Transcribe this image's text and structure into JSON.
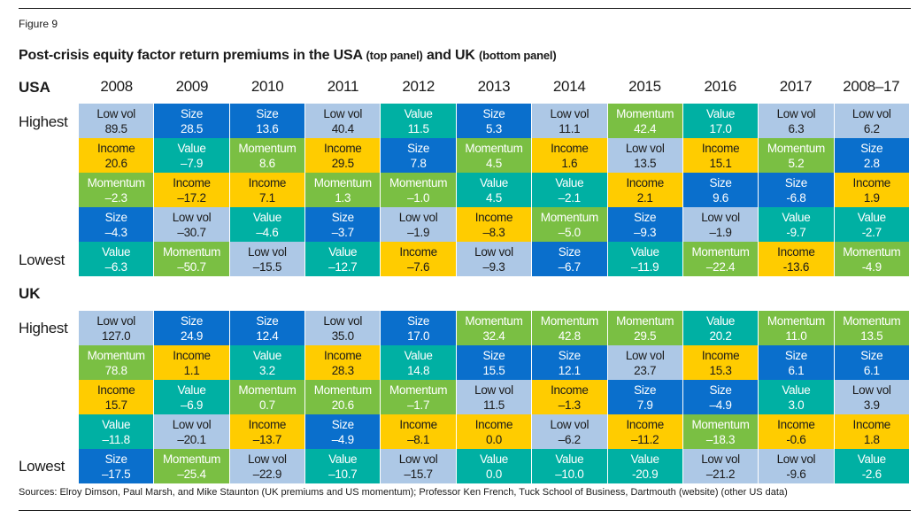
{
  "figure_label": "Figure 9",
  "title": {
    "main1": "Post-crisis equity factor return premiums in the USA ",
    "small1": "(top panel)",
    "main2": " and UK ",
    "small2": "(bottom panel)"
  },
  "rank_labels": {
    "highest": "Highest",
    "lowest": "Lowest"
  },
  "sources": "Sources: Elroy Dimson, Paul Marsh, and Mike Staunton (UK premiums and US momentum); Professor Ken French, Tuck School of Business, Dartmouth (website) (other US data)",
  "factor_colors": {
    "Low vol": "#adc8e6",
    "Size": "#0a6fcc",
    "Value": "#00b0a3",
    "Momentum": "#7abf43",
    "Income": "#ffcc00"
  },
  "chart_data": {
    "type": "table",
    "title": "Post-crisis equity factor return premiums in the USA (top panel) and UK (bottom panel)",
    "columns": [
      "2008",
      "2009",
      "2010",
      "2011",
      "2012",
      "2013",
      "2014",
      "2015",
      "2016",
      "2017",
      "2008–17"
    ],
    "row_order": "Highest to Lowest",
    "panels": [
      {
        "name": "USA",
        "columns": [
          [
            [
              "Low vol",
              "89.5"
            ],
            [
              "Income",
              "20.6"
            ],
            [
              "Momentum",
              "–2.3"
            ],
            [
              "Size",
              "–4.3"
            ],
            [
              "Value",
              "–6.3"
            ]
          ],
          [
            [
              "Size",
              "28.5"
            ],
            [
              "Value",
              "–7.9"
            ],
            [
              "Income",
              "–17.2"
            ],
            [
              "Low vol",
              "–30.7"
            ],
            [
              "Momentum",
              "–50.7"
            ]
          ],
          [
            [
              "Size",
              "13.6"
            ],
            [
              "Momentum",
              "8.6"
            ],
            [
              "Income",
              "7.1"
            ],
            [
              "Value",
              "–4.6"
            ],
            [
              "Low vol",
              "–15.5"
            ]
          ],
          [
            [
              "Low vol",
              "40.4"
            ],
            [
              "Income",
              "29.5"
            ],
            [
              "Momentum",
              "1.3"
            ],
            [
              "Size",
              "–3.7"
            ],
            [
              "Value",
              "–12.7"
            ]
          ],
          [
            [
              "Value",
              "11.5"
            ],
            [
              "Size",
              "7.8"
            ],
            [
              "Momentum",
              "–1.0"
            ],
            [
              "Low vol",
              "–1.9"
            ],
            [
              "Income",
              "–7.6"
            ]
          ],
          [
            [
              "Size",
              "5.3"
            ],
            [
              "Momentum",
              "4.5"
            ],
            [
              "Value",
              "4.5"
            ],
            [
              "Income",
              "–8.3"
            ],
            [
              "Low vol",
              "–9.3"
            ]
          ],
          [
            [
              "Low vol",
              "11.1"
            ],
            [
              "Income",
              "1.6"
            ],
            [
              "Value",
              "–2.1"
            ],
            [
              "Momentum",
              "–5.0"
            ],
            [
              "Size",
              "–6.7"
            ]
          ],
          [
            [
              "Momentum",
              "42.4"
            ],
            [
              "Low vol",
              "13.5"
            ],
            [
              "Income",
              "2.1"
            ],
            [
              "Size",
              "–9.3"
            ],
            [
              "Value",
              "–11.9"
            ]
          ],
          [
            [
              "Value",
              "17.0"
            ],
            [
              "Income",
              "15.1"
            ],
            [
              "Size",
              "9.6"
            ],
            [
              "Low vol",
              "–1.9"
            ],
            [
              "Momentum",
              "–22.4"
            ]
          ],
          [
            [
              "Low vol",
              "6.3"
            ],
            [
              "Momentum",
              "5.2"
            ],
            [
              "Size",
              "-6.8"
            ],
            [
              "Value",
              "-9.7"
            ],
            [
              "Income",
              "-13.6"
            ]
          ],
          [
            [
              "Low vol",
              "6.2"
            ],
            [
              "Size",
              "2.8"
            ],
            [
              "Income",
              "1.9"
            ],
            [
              "Value",
              "-2.7"
            ],
            [
              "Momentum",
              "-4.9"
            ]
          ]
        ]
      },
      {
        "name": "UK",
        "columns": [
          [
            [
              "Low vol",
              "127.0"
            ],
            [
              "Momentum",
              "78.8"
            ],
            [
              "Income",
              "15.7"
            ],
            [
              "Value",
              "–11.8"
            ],
            [
              "Size",
              "–17.5"
            ]
          ],
          [
            [
              "Size",
              "24.9"
            ],
            [
              "Income",
              "1.1"
            ],
            [
              "Value",
              "–6.9"
            ],
            [
              "Low vol",
              "–20.1"
            ],
            [
              "Momentum",
              "–25.4"
            ]
          ],
          [
            [
              "Size",
              "12.4"
            ],
            [
              "Value",
              "3.2"
            ],
            [
              "Momentum",
              "0.7"
            ],
            [
              "Income",
              "–13.7"
            ],
            [
              "Low vol",
              "–22.9"
            ]
          ],
          [
            [
              "Low vol",
              "35.0"
            ],
            [
              "Income",
              "28.3"
            ],
            [
              "Momentum",
              "20.6"
            ],
            [
              "Size",
              "–4.9"
            ],
            [
              "Value",
              "–10.7"
            ]
          ],
          [
            [
              "Size",
              "17.0"
            ],
            [
              "Value",
              "14.8"
            ],
            [
              "Momentum",
              "–1.7"
            ],
            [
              "Income",
              "–8.1"
            ],
            [
              "Low vol",
              "–15.7"
            ]
          ],
          [
            [
              "Momentum",
              "32.4"
            ],
            [
              "Size",
              "15.5"
            ],
            [
              "Low vol",
              "11.5"
            ],
            [
              "Income",
              "0.0"
            ],
            [
              "Value",
              "0.0"
            ]
          ],
          [
            [
              "Momentum",
              "42.8"
            ],
            [
              "Size",
              "12.1"
            ],
            [
              "Income",
              "–1.3"
            ],
            [
              "Low vol",
              "–6.2"
            ],
            [
              "Value",
              "–10.0"
            ]
          ],
          [
            [
              "Momentum",
              "29.5"
            ],
            [
              "Low vol",
              "23.7"
            ],
            [
              "Size",
              "7.9"
            ],
            [
              "Income",
              "–11.2"
            ],
            [
              "Value",
              "-20.9"
            ]
          ],
          [
            [
              "Value",
              "20.2"
            ],
            [
              "Income",
              "15.3"
            ],
            [
              "Size",
              "–4.9"
            ],
            [
              "Momentum",
              "–18.3"
            ],
            [
              "Low vol",
              "–21.2"
            ]
          ],
          [
            [
              "Momentum",
              "11.0"
            ],
            [
              "Size",
              "6.1"
            ],
            [
              "Value",
              "3.0"
            ],
            [
              "Income",
              "-0.6"
            ],
            [
              "Low vol",
              "-9.6"
            ]
          ],
          [
            [
              "Momentum",
              "13.5"
            ],
            [
              "Size",
              "6.1"
            ],
            [
              "Low vol",
              "3.9"
            ],
            [
              "Income",
              "1.8"
            ],
            [
              "Value",
              "-2.6"
            ]
          ]
        ]
      }
    ]
  }
}
